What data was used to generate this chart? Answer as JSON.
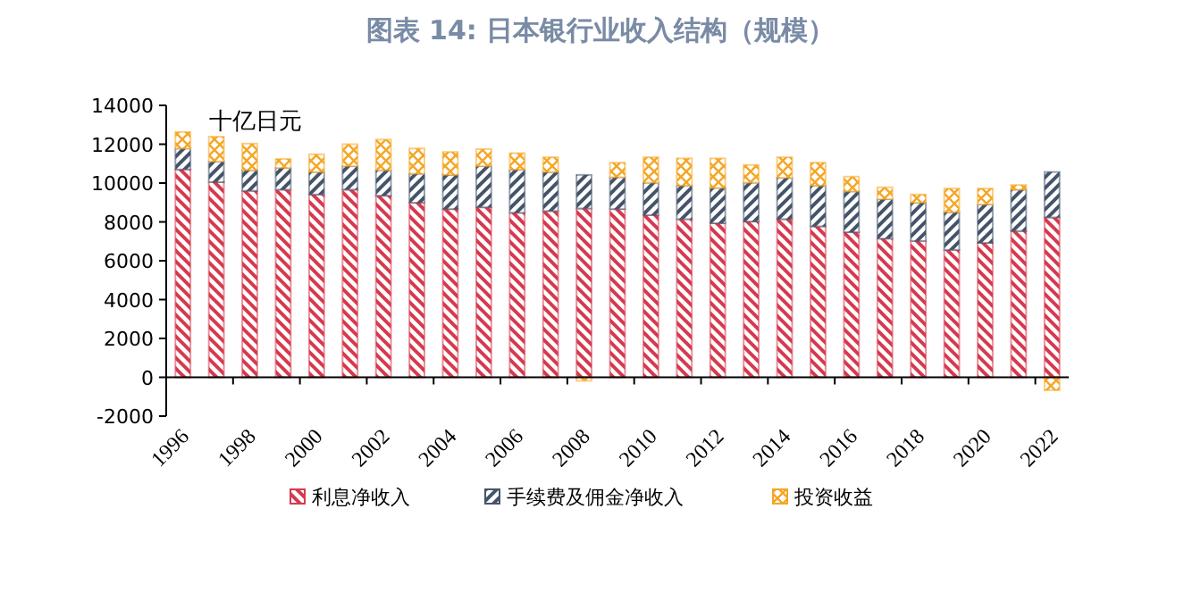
{
  "chart_data": {
    "type": "bar",
    "title": "图表 14: 日本银行业收入结构（规模）",
    "stacked": true,
    "legend": "bottom",
    "annotations": [
      "十亿日元"
    ],
    "categories": [
      "1996",
      null,
      "1998",
      null,
      "2000",
      null,
      "2002",
      null,
      "2004",
      null,
      "2006",
      null,
      "2008",
      null,
      "2010",
      null,
      "2012",
      null,
      "2014",
      null,
      "2016",
      null,
      "2018",
      null,
      "2020",
      null,
      "2022"
    ],
    "ylim": [
      -2000,
      14000
    ],
    "yticks": [
      -2000,
      0,
      2000,
      4000,
      6000,
      8000,
      10000,
      12000,
      14000
    ],
    "series": [
      {
        "name": "利息净收入",
        "color": "#d63a4e",
        "values": [
          10700,
          10050,
          9600,
          9660,
          9410,
          9660,
          9350,
          8990,
          8660,
          8750,
          8470,
          8560,
          8690,
          8660,
          8350,
          8140,
          7930,
          8020,
          8140,
          7770,
          7470,
          7140,
          7020,
          6560,
          6920,
          7530,
          8230
        ]
      },
      {
        "name": "手续费及佣金净收入",
        "color": "#44546a",
        "values": [
          1080,
          1060,
          1060,
          1120,
          1160,
          1210,
          1310,
          1490,
          1760,
          2120,
          2220,
          2010,
          1730,
          1640,
          1670,
          1730,
          1820,
          2000,
          2130,
          2100,
          2100,
          2030,
          1970,
          1940,
          1980,
          2130,
          2340
        ]
      },
      {
        "name": "投资收益",
        "color": "#f5a623",
        "values": [
          850,
          1280,
          1370,
          460,
          910,
          1130,
          1580,
          1300,
          1180,
          880,
          850,
          760,
          -180,
          750,
          1310,
          1400,
          1520,
          910,
          1060,
          1180,
          760,
          610,
          420,
          1220,
          820,
          240,
          -670
        ]
      }
    ]
  }
}
